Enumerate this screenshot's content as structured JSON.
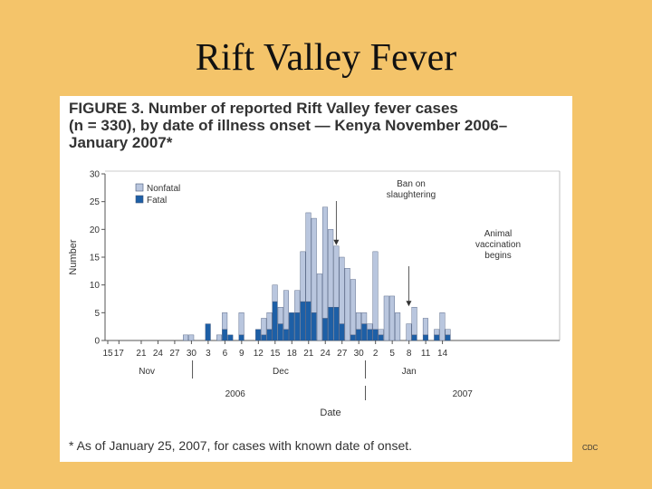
{
  "slide": {
    "title": "Rift Valley Fever",
    "credit": "CDC"
  },
  "figure": {
    "caption_lines": [
      "FIGURE 3. Number of reported Rift Valley fever cases",
      "(n = 330), by date of illness onset — Kenya November 2006–",
      "January 2007*"
    ],
    "footnote": "* As of January 25, 2007, for cases with known date of onset."
  },
  "chart_data": {
    "type": "bar",
    "stacked": true,
    "xlabel": "Date",
    "ylabel": "Number",
    "ylim": [
      0,
      30
    ],
    "y_ticks": [
      0,
      5,
      10,
      15,
      20,
      25,
      30
    ],
    "x_tick_labels": [
      "15",
      "17",
      "21",
      "24",
      "27",
      "30",
      "3",
      "6",
      "9",
      "12",
      "15",
      "18",
      "21",
      "24",
      "27",
      "30",
      "2",
      "5",
      "8",
      "11",
      "14"
    ],
    "month_labels": [
      "Nov",
      "Dec",
      "Jan"
    ],
    "year_labels": [
      "2006",
      "2007"
    ],
    "legend": [
      "Nonfatal",
      "Fatal"
    ],
    "legend_position": "top-left",
    "colors": {
      "nonfatal": "#B9C6DE",
      "fatal": "#1D5FA6",
      "border": "#445577"
    },
    "annotations": [
      {
        "text_lines": [
          "Ban on",
          "slaughtering"
        ]
      },
      {
        "text_lines": [
          "Animal",
          "vaccination",
          "begins"
        ]
      }
    ],
    "categories": [
      "Nov 29",
      "Nov 30",
      "Dec 3",
      "Dec 5",
      "Dec 6",
      "Dec 7",
      "Dec 9",
      "Dec 11",
      "Dec 12",
      "Dec 13",
      "Dec 14",
      "Dec 15",
      "Dec 16",
      "Dec 17",
      "Dec 18",
      "Dec 19",
      "Dec 20",
      "Dec 21",
      "Dec 22",
      "Dec 23",
      "Dec 24",
      "Dec 25",
      "Dec 26",
      "Dec 27",
      "Dec 28",
      "Dec 29",
      "Dec 30",
      "Dec 31",
      "Jan 1",
      "Jan 2",
      "Jan 3",
      "Jan 4",
      "Jan 5",
      "Jan 6",
      "Jan 7",
      "Jan 8",
      "Jan 9",
      "Jan 10",
      "Jan 11",
      "Jan 12",
      "Jan 13",
      "Jan 14",
      "Jan 15"
    ],
    "series": [
      {
        "name": "Fatal",
        "values": [
          0,
          0,
          3,
          0,
          2,
          1,
          1,
          0,
          2,
          1,
          2,
          7,
          3,
          2,
          5,
          5,
          7,
          7,
          5,
          0,
          4,
          6,
          6,
          3,
          0,
          1,
          2,
          3,
          2,
          2,
          1,
          0,
          0,
          0,
          0,
          0,
          1,
          0,
          1,
          0,
          1,
          0,
          1
        ]
      },
      {
        "name": "Nonfatal",
        "values": [
          1,
          1,
          0,
          1,
          3,
          0,
          4,
          0,
          0,
          3,
          3,
          3,
          3,
          7,
          0,
          4,
          9,
          16,
          17,
          12,
          20,
          14,
          11,
          12,
          13,
          10,
          3,
          2,
          1,
          14,
          1,
          8,
          8,
          5,
          0,
          3,
          5,
          0,
          3,
          0,
          1,
          5,
          1
        ]
      }
    ]
  }
}
